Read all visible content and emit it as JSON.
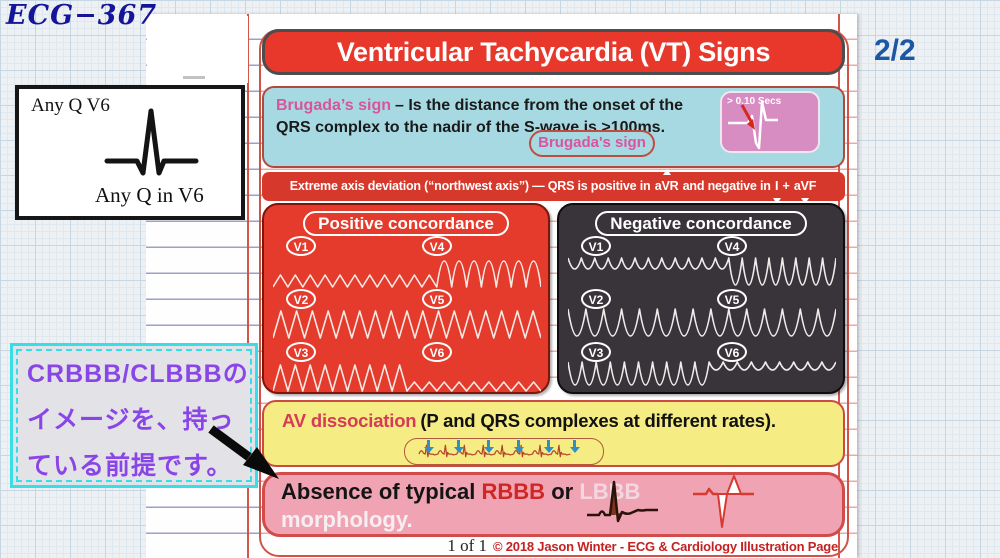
{
  "page": {
    "slide_id": "ECG−367",
    "page_indicator": "2/2"
  },
  "inset": {
    "top_label": "Any Q V6",
    "bottom_label": "Any Q in V6"
  },
  "note": {
    "line1": "CRBBB/CLBBBの",
    "line2": "イメージを、持っ",
    "line3": "ている前提です。"
  },
  "poster": {
    "title": "Ventricular Tachycardia (VT) Signs",
    "brugada": {
      "name": "Brugada’s sign",
      "body": "– Is the distance from the onset of the QRS complex to the nadir of the S-wave is >100ms.",
      "pill_label": "Brugada's sign",
      "thumb_caption": "> 0.10 Secs"
    },
    "axis": {
      "prefix": "Extreme axis deviation (“northwest axis”) — QRS is positive in ",
      "lead1": "aVR",
      "mid": " and negative in ",
      "lead2": "I",
      "plus": " + ",
      "lead3": "aVF"
    },
    "concordance": {
      "positive": {
        "title": "Positive concordance",
        "leads": [
          "V1",
          "V4",
          "V2",
          "V5",
          "V3",
          "V6"
        ]
      },
      "negative": {
        "title": "Negative concordance",
        "leads": [
          "V1",
          "V4",
          "V2",
          "V5",
          "V3",
          "V6"
        ]
      }
    },
    "av": {
      "name": "AV dissociation",
      "body": "(P and QRS complexes at different rates)."
    },
    "absence": {
      "prefix": "Absence of typical ",
      "rbbb": "RBBB",
      "conj": " or ",
      "lbbb": "LBBB",
      "line2": "morphology."
    },
    "footer": {
      "page_label": "1 of 1",
      "credit": "© 2018 Jason Winter - ECG & Cardiology Illustration Page"
    }
  },
  "colors": {
    "banner_red": "#e8382c",
    "brugada_cyan": "#a7d9e2",
    "brugada_pink_text": "#d8549e",
    "axis_red": "#d6392c",
    "positive_panel_red": "#e43b2c",
    "negative_panel_charcoal": "#393439",
    "av_yellow": "#f6ec84",
    "absence_pink": "#f0a3b3",
    "note_purple": "#8a45e8",
    "note_border_cyan": "#37dde8",
    "slide_id_blue": "#15159a",
    "page_num_blue": "#1c57a6",
    "credit_red": "#c42222"
  }
}
